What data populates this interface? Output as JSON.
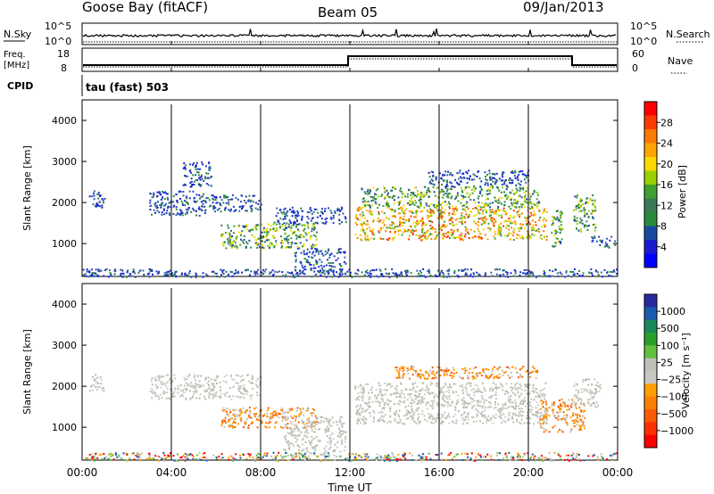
{
  "header": {
    "station": "Goose Bay (fitACF)",
    "beam": "Beam 05",
    "date": "09/Jan/2013"
  },
  "summary": {
    "nsky_label": "N.Sky",
    "nsearch_label": "N.Search",
    "nsky_ticks": [
      "10^5",
      "10^0"
    ],
    "nsearch_ticks": [
      "10^5",
      "10^0"
    ],
    "freq_label": "Freq.",
    "freq_unit": "[MHz]",
    "freq_ticks": [
      "18",
      "8"
    ],
    "nave_label": "Nave",
    "nave_ticks": [
      "60",
      "0"
    ],
    "cpid_label": "CPID",
    "cpid_text": "tau (fast) 503"
  },
  "chart_data": [
    {
      "type": "heatmap",
      "name": "Power",
      "ylabel": "Slant Range [km]",
      "yticks": [
        "4000",
        "3000",
        "2000",
        "1000"
      ],
      "ylim": [
        200,
        4500
      ],
      "xlim_hours": [
        0,
        24
      ],
      "colorbar_label": "Power [dB]",
      "colorbar_ticks": [
        "28",
        "24",
        "20",
        "16",
        "12",
        "8",
        "4"
      ],
      "colorbar_colors": [
        "#ff0000",
        "#ff3a00",
        "#ff7a00",
        "#ffa500",
        "#ffd800",
        "#9ad000",
        "#40a030",
        "#3a7a55",
        "#2a8a3a",
        "#1a4aa0",
        "#1a1ad0",
        "#0000ff"
      ],
      "regions": [
        {
          "t0": 0.3,
          "t1": 1.0,
          "r0": 1900,
          "r1": 2300,
          "level": "low"
        },
        {
          "t0": 3.0,
          "t1": 5.5,
          "r0": 1700,
          "r1": 2300,
          "level": "low"
        },
        {
          "t0": 4.5,
          "t1": 5.8,
          "r0": 2400,
          "r1": 3000,
          "level": "low"
        },
        {
          "t0": 5.5,
          "t1": 8.0,
          "r0": 1800,
          "r1": 2200,
          "level": "low"
        },
        {
          "t0": 6.2,
          "t1": 10.5,
          "r0": 900,
          "r1": 1500,
          "level": "mid"
        },
        {
          "t0": 8.5,
          "t1": 11.8,
          "r0": 1500,
          "r1": 1900,
          "level": "low"
        },
        {
          "t0": 9.5,
          "t1": 11.8,
          "r0": 250,
          "r1": 900,
          "level": "low"
        },
        {
          "t0": 12.2,
          "t1": 20.8,
          "r0": 1100,
          "r1": 1900,
          "level": "high"
        },
        {
          "t0": 12.5,
          "t1": 20.5,
          "r0": 1900,
          "r1": 2400,
          "level": "mid"
        },
        {
          "t0": 15.5,
          "t1": 20.0,
          "r0": 2400,
          "r1": 2800,
          "level": "low"
        },
        {
          "t0": 21.0,
          "t1": 21.5,
          "r0": 900,
          "r1": 1900,
          "level": "mid"
        },
        {
          "t0": 22.0,
          "t1": 23.0,
          "r0": 1300,
          "r1": 2200,
          "level": "mid"
        },
        {
          "t0": 22.8,
          "t1": 23.9,
          "r0": 900,
          "r1": 1200,
          "level": "low"
        },
        {
          "t0": 0.0,
          "t1": 24.0,
          "r0": 200,
          "r1": 400,
          "level": "low"
        }
      ]
    },
    {
      "type": "heatmap",
      "name": "Velocity",
      "ylabel": "Slant Range [km]",
      "yticks": [
        "4000",
        "3000",
        "2000",
        "1000"
      ],
      "ylim": [
        200,
        4500
      ],
      "xlim_hours": [
        0,
        24
      ],
      "colorbar_label": "Velocity [m s⁻¹]",
      "colorbar_ticks": [
        "1000",
        "500",
        "100",
        "25",
        "−25",
        "−100",
        "−500",
        "−1000"
      ],
      "colorbar_colors": [
        "#2a2aa0",
        "#1a5ab0",
        "#1a8a5a",
        "#2aa02a",
        "#60c040",
        "#c0c0b8",
        "#c8c8c0",
        "#ffa000",
        "#ff8000",
        "#ff5a00",
        "#ff3000",
        "#ff0000"
      ],
      "regions": [
        {
          "t0": 0.3,
          "t1": 1.0,
          "r0": 1900,
          "r1": 2300,
          "level": "grey"
        },
        {
          "t0": 3.0,
          "t1": 8.0,
          "r0": 1700,
          "r1": 2300,
          "level": "grey"
        },
        {
          "t0": 6.2,
          "t1": 10.5,
          "r0": 1000,
          "r1": 1500,
          "level": "orange"
        },
        {
          "t0": 9.0,
          "t1": 11.8,
          "r0": 300,
          "r1": 1300,
          "level": "grey"
        },
        {
          "t0": 12.2,
          "t1": 20.8,
          "r0": 1100,
          "r1": 2100,
          "level": "grey"
        },
        {
          "t0": 14.0,
          "t1": 20.5,
          "r0": 2200,
          "r1": 2500,
          "level": "orange"
        },
        {
          "t0": 20.5,
          "t1": 22.5,
          "r0": 900,
          "r1": 1700,
          "level": "orange"
        },
        {
          "t0": 22.0,
          "t1": 23.2,
          "r0": 1500,
          "r1": 2200,
          "level": "grey"
        },
        {
          "t0": 0.0,
          "t1": 24.0,
          "r0": 200,
          "r1": 400,
          "level": "mixed"
        }
      ]
    }
  ],
  "x_axis": {
    "ticks": [
      "00:00",
      "04:00",
      "08:00",
      "12:00",
      "16:00",
      "20:00",
      "00:00"
    ],
    "label": "Time UT"
  }
}
